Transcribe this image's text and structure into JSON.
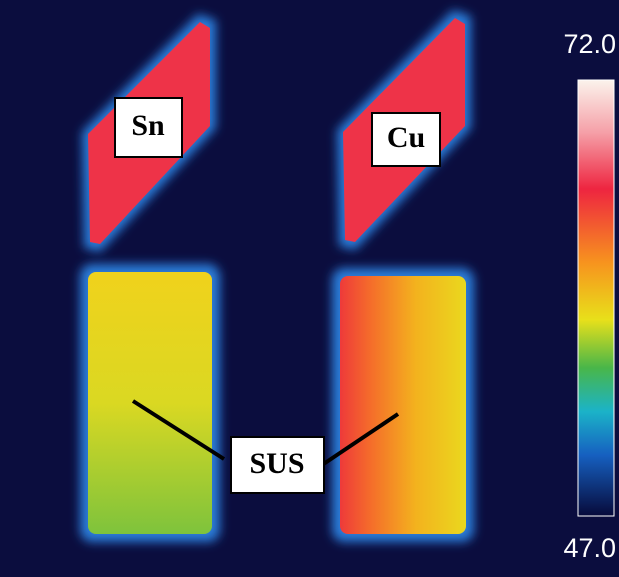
{
  "labels": {
    "sn": "Sn",
    "cu": "Cu",
    "sus": "SUS"
  },
  "colorbar": {
    "max": {
      "value": 72,
      "label": "72.0"
    },
    "min": {
      "value": 47,
      "label": "47.0"
    }
  }
}
